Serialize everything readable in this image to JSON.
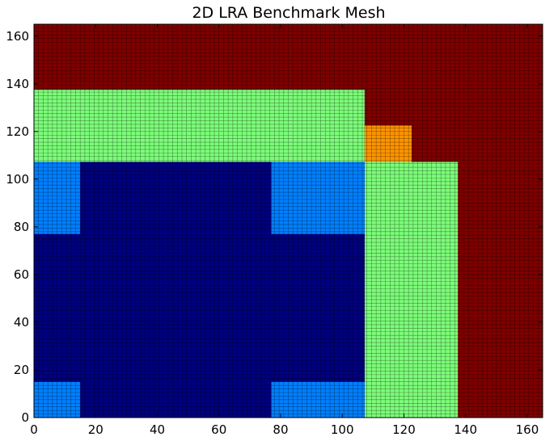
{
  "chart_data": {
    "type": "heatmap",
    "title": "2D LRA Benchmark Mesh",
    "xlabel": "",
    "ylabel": "",
    "xlim": [
      0,
      165
    ],
    "ylim": [
      0,
      165
    ],
    "x_ticks": [
      0,
      20,
      40,
      60,
      80,
      100,
      120,
      140,
      160
    ],
    "y_ticks": [
      0,
      20,
      40,
      60,
      80,
      100,
      120,
      140,
      160
    ],
    "x_tick_labels": [
      "0",
      "20",
      "40",
      "60",
      "80",
      "100",
      "120",
      "140",
      "160"
    ],
    "y_tick_labels": [
      "0",
      "20",
      "40",
      "60",
      "80",
      "100",
      "120",
      "140",
      "160"
    ],
    "grid": false,
    "colormap": "jet",
    "mesh_cell_size": 1.5,
    "region_colors": {
      "dark_blue": "#00007f",
      "light_blue": "#0080ff",
      "green": "#7dff7a",
      "orange": "#ff9500",
      "dark_red": "#7f0000"
    },
    "regions": [
      {
        "color": "dark_red",
        "x": [
          0,
          165
        ],
        "y": [
          0,
          165
        ]
      },
      {
        "color": "green",
        "x": [
          0,
          107.25
        ],
        "y": [
          107.25,
          137.5
        ]
      },
      {
        "color": "orange",
        "x": [
          107.25,
          122.5
        ],
        "y": [
          107.25,
          122.5
        ]
      },
      {
        "color": "green",
        "x": [
          107.25,
          137.5
        ],
        "y": [
          0,
          107.25
        ]
      },
      {
        "color": "dark_blue",
        "x": [
          0,
          107.25
        ],
        "y": [
          0,
          107.25
        ]
      },
      {
        "color": "light_blue",
        "x": [
          0,
          15
        ],
        "y": [
          0,
          15
        ]
      },
      {
        "color": "light_blue",
        "x": [
          0,
          15
        ],
        "y": [
          77,
          107.25
        ]
      },
      {
        "color": "light_blue",
        "x": [
          77,
          107.25
        ],
        "y": [
          0,
          15
        ]
      },
      {
        "color": "light_blue",
        "x": [
          77,
          107.25
        ],
        "y": [
          77,
          107.25
        ]
      }
    ]
  }
}
